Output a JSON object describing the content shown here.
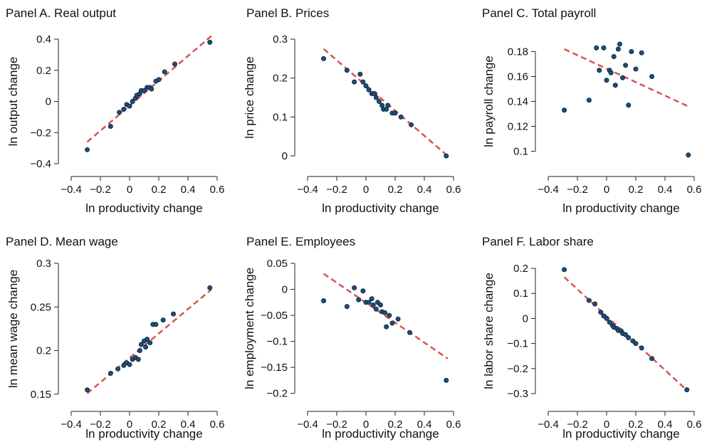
{
  "figure": {
    "colors": {
      "points": "#1f4e79",
      "fit_line": "#d9534f",
      "axis": "#222222"
    }
  },
  "chart_data": [
    {
      "type": "scatter",
      "title": "Panel A. Real output",
      "xlabel": "ln productivity change",
      "ylabel": "ln output change",
      "xlim": [
        -0.4,
        0.6
      ],
      "ylim": [
        -0.4,
        0.4
      ],
      "xticks": [
        "−0.4",
        "−0.2",
        "0",
        "0.2",
        "0.4",
        "0.6"
      ],
      "xtick_values": [
        -0.4,
        -0.2,
        0,
        0.2,
        0.4,
        0.6
      ],
      "yticks": [
        "−0.4",
        "−0.2",
        "0",
        "0.2",
        "0.4"
      ],
      "ytick_values": [
        -0.4,
        -0.2,
        0,
        0.2,
        0.4
      ],
      "points": [
        [
          -0.29,
          -0.31
        ],
        [
          -0.13,
          -0.16
        ],
        [
          -0.07,
          -0.07
        ],
        [
          -0.04,
          -0.05
        ],
        [
          -0.02,
          -0.02
        ],
        [
          0.0,
          -0.03
        ],
        [
          0.02,
          0.0
        ],
        [
          0.04,
          0.02
        ],
        [
          0.05,
          0.04
        ],
        [
          0.07,
          0.05
        ],
        [
          0.08,
          0.07
        ],
        [
          0.1,
          0.07
        ],
        [
          0.12,
          0.09
        ],
        [
          0.14,
          0.09
        ],
        [
          0.15,
          0.08
        ],
        [
          0.18,
          0.13
        ],
        [
          0.2,
          0.14
        ],
        [
          0.24,
          0.19
        ],
        [
          0.31,
          0.24
        ],
        [
          0.55,
          0.38
        ]
      ],
      "fit_line": [
        [
          -0.29,
          -0.26
        ],
        [
          0.56,
          0.42
        ]
      ]
    },
    {
      "type": "scatter",
      "title": "Panel B. Prices",
      "xlabel": "ln productivity change",
      "ylabel": "ln price change",
      "xlim": [
        -0.4,
        0.6
      ],
      "ylim": [
        -0.02,
        0.3
      ],
      "xticks": [
        "−0.4",
        "−0.2",
        "0",
        "0.2",
        "0.4",
        "0.6"
      ],
      "xtick_values": [
        -0.4,
        -0.2,
        0,
        0.2,
        0.4,
        0.6
      ],
      "yticks": [
        "0",
        "0.1",
        "0.2",
        "0.3"
      ],
      "ytick_values": [
        0,
        0.1,
        0.2,
        0.3
      ],
      "points": [
        [
          -0.29,
          0.25
        ],
        [
          -0.13,
          0.22
        ],
        [
          -0.08,
          0.19
        ],
        [
          -0.04,
          0.21
        ],
        [
          -0.02,
          0.19
        ],
        [
          0.0,
          0.18
        ],
        [
          0.02,
          0.17
        ],
        [
          0.04,
          0.16
        ],
        [
          0.06,
          0.16
        ],
        [
          0.07,
          0.15
        ],
        [
          0.09,
          0.14
        ],
        [
          0.11,
          0.13
        ],
        [
          0.12,
          0.12
        ],
        [
          0.14,
          0.12
        ],
        [
          0.15,
          0.13
        ],
        [
          0.18,
          0.11
        ],
        [
          0.2,
          0.11
        ],
        [
          0.24,
          0.1
        ],
        [
          0.31,
          0.08
        ],
        [
          0.55,
          0.0
        ]
      ],
      "fit_line": [
        [
          -0.29,
          0.275
        ],
        [
          0.56,
          0.0
        ]
      ]
    },
    {
      "type": "scatter",
      "title": "Panel C. Total payroll",
      "xlabel": "ln productivity change",
      "ylabel": "ln payroll change",
      "xlim": [
        -0.4,
        0.6
      ],
      "ylim": [
        0.09,
        0.19
      ],
      "xticks": [
        "−0.4",
        "−0.2",
        "0",
        "0.2",
        "0.4",
        "0.6"
      ],
      "xtick_values": [
        -0.4,
        -0.2,
        0,
        0.2,
        0.4,
        0.6
      ],
      "yticks": [
        "0.1",
        "0.12",
        "0.14",
        "0.16",
        "0.18"
      ],
      "ytick_values": [
        0.1,
        0.12,
        0.14,
        0.16,
        0.18
      ],
      "points": [
        [
          -0.29,
          0.133
        ],
        [
          -0.12,
          0.141
        ],
        [
          -0.07,
          0.183
        ],
        [
          -0.05,
          0.165
        ],
        [
          -0.02,
          0.183
        ],
        [
          0.0,
          0.157
        ],
        [
          0.02,
          0.165
        ],
        [
          0.03,
          0.163
        ],
        [
          0.05,
          0.176
        ],
        [
          0.06,
          0.153
        ],
        [
          0.08,
          0.182
        ],
        [
          0.09,
          0.186
        ],
        [
          0.11,
          0.159
        ],
        [
          0.13,
          0.169
        ],
        [
          0.15,
          0.137
        ],
        [
          0.17,
          0.18
        ],
        [
          0.2,
          0.166
        ],
        [
          0.24,
          0.179
        ],
        [
          0.31,
          0.16
        ],
        [
          0.56,
          0.097
        ]
      ],
      "fit_line": [
        [
          -0.29,
          0.182
        ],
        [
          0.56,
          0.136
        ]
      ]
    },
    {
      "type": "scatter",
      "title": "Panel D. Mean wage",
      "xlabel": "ln productivity change",
      "ylabel": "ln mean wage change",
      "xlim": [
        -0.4,
        0.6
      ],
      "ylim": [
        0.145,
        0.3
      ],
      "xticks": [
        "−0.4",
        "−0.2",
        "0",
        "0.2",
        "0.4",
        "0.6"
      ],
      "xtick_values": [
        -0.4,
        -0.2,
        0,
        0.2,
        0.4,
        0.6
      ],
      "yticks": [
        "0.15",
        "0.2",
        "0.25",
        "0.3"
      ],
      "ytick_values": [
        0.15,
        0.2,
        0.25,
        0.3
      ],
      "points": [
        [
          -0.29,
          0.155
        ],
        [
          -0.13,
          0.174
        ],
        [
          -0.08,
          0.179
        ],
        [
          -0.04,
          0.183
        ],
        [
          -0.02,
          0.186
        ],
        [
          0.0,
          0.184
        ],
        [
          0.02,
          0.19
        ],
        [
          0.04,
          0.192
        ],
        [
          0.06,
          0.19
        ],
        [
          0.07,
          0.2
        ],
        [
          0.08,
          0.207
        ],
        [
          0.1,
          0.211
        ],
        [
          0.11,
          0.204
        ],
        [
          0.12,
          0.213
        ],
        [
          0.14,
          0.209
        ],
        [
          0.16,
          0.23
        ],
        [
          0.18,
          0.23
        ],
        [
          0.23,
          0.235
        ],
        [
          0.3,
          0.242
        ],
        [
          0.55,
          0.272
        ]
      ],
      "fit_line": [
        [
          -0.29,
          0.151
        ],
        [
          0.56,
          0.27
        ]
      ]
    },
    {
      "type": "scatter",
      "title": "Panel E. Employees",
      "xlabel": "ln productivity change",
      "ylabel": "ln employment change",
      "xlim": [
        -0.4,
        0.6
      ],
      "ylim": [
        -0.21,
        0.05
      ],
      "xticks": [
        "−0.4",
        "−0.2",
        "0",
        "0.2",
        "0.4",
        "0.6"
      ],
      "xtick_values": [
        -0.4,
        -0.2,
        0,
        0.2,
        0.4,
        0.6
      ],
      "yticks": [
        "0.05",
        "0",
        "−0.05",
        "−0.1",
        "−0.15",
        "−0.2"
      ],
      "ytick_values": [
        0.05,
        0,
        -0.05,
        -0.1,
        -0.15,
        -0.2
      ],
      "points": [
        [
          -0.29,
          -0.022
        ],
        [
          -0.13,
          -0.033
        ],
        [
          -0.08,
          0.003
        ],
        [
          -0.05,
          -0.02
        ],
        [
          -0.02,
          -0.003
        ],
        [
          0.0,
          -0.025
        ],
        [
          0.02,
          -0.025
        ],
        [
          0.04,
          -0.018
        ],
        [
          0.05,
          -0.03
        ],
        [
          0.07,
          -0.038
        ],
        [
          0.08,
          -0.025
        ],
        [
          0.1,
          -0.03
        ],
        [
          0.11,
          -0.043
        ],
        [
          0.13,
          -0.045
        ],
        [
          0.14,
          -0.072
        ],
        [
          0.16,
          -0.05
        ],
        [
          0.18,
          -0.065
        ],
        [
          0.22,
          -0.057
        ],
        [
          0.3,
          -0.083
        ],
        [
          0.55,
          -0.175
        ]
      ],
      "fit_line": [
        [
          -0.29,
          0.03
        ],
        [
          0.56,
          -0.133
        ]
      ]
    },
    {
      "type": "scatter",
      "title": "Panel F. Labor share",
      "xlabel": "ln productivity change",
      "ylabel": "ln labor share change",
      "xlim": [
        -0.4,
        0.6
      ],
      "ylim": [
        -0.32,
        0.22
      ],
      "xticks": [
        "−0.4",
        "−0.2",
        "0",
        "0.2",
        "0.4",
        "0.6"
      ],
      "xtick_values": [
        -0.4,
        -0.2,
        0,
        0.2,
        0.4,
        0.6
      ],
      "yticks": [
        "0.2",
        "0.1",
        "0",
        "−0.1",
        "−0.2",
        "−0.3"
      ],
      "ytick_values": [
        0.2,
        0.1,
        0,
        -0.1,
        -0.2,
        -0.3
      ],
      "points": [
        [
          -0.29,
          0.195
        ],
        [
          -0.12,
          0.072
        ],
        [
          -0.08,
          0.058
        ],
        [
          -0.04,
          0.025
        ],
        [
          -0.02,
          0.01
        ],
        [
          0.0,
          0.0
        ],
        [
          0.02,
          -0.015
        ],
        [
          0.04,
          -0.028
        ],
        [
          0.05,
          -0.035
        ],
        [
          0.07,
          -0.04
        ],
        [
          0.08,
          -0.048
        ],
        [
          0.1,
          -0.05
        ],
        [
          0.11,
          -0.06
        ],
        [
          0.13,
          -0.065
        ],
        [
          0.15,
          -0.077
        ],
        [
          0.18,
          -0.09
        ],
        [
          0.2,
          -0.1
        ],
        [
          0.24,
          -0.118
        ],
        [
          0.31,
          -0.16
        ],
        [
          0.55,
          -0.285
        ]
      ],
      "fit_line": [
        [
          -0.29,
          0.165
        ],
        [
          0.56,
          -0.292
        ]
      ]
    }
  ]
}
